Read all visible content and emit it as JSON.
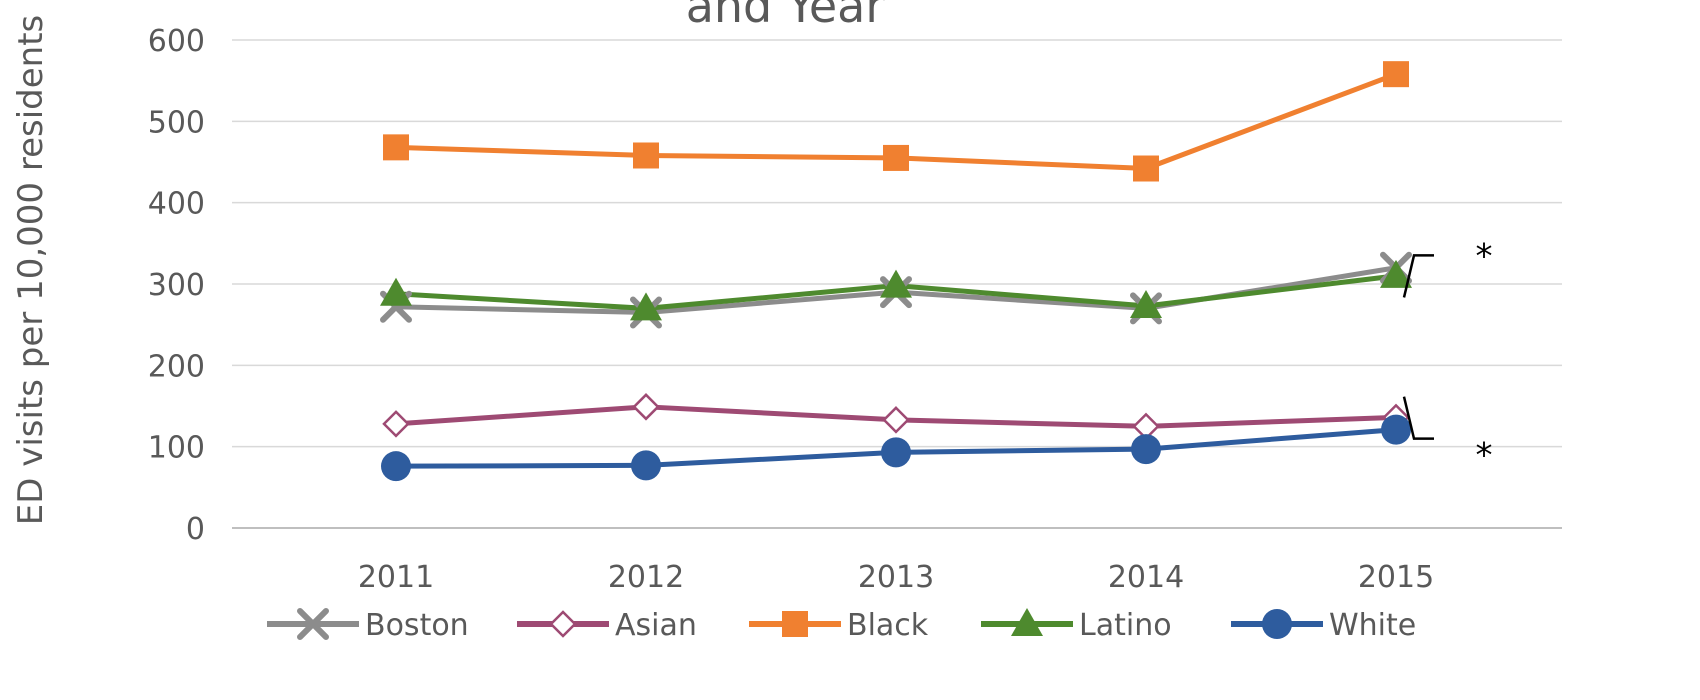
{
  "chart_data": {
    "type": "line",
    "title": "and Year",
    "ylabel": "ED visits per 10,000 residents",
    "xlabel": "",
    "x": [
      "2011",
      "2012",
      "2013",
      "2014",
      "2015"
    ],
    "ylim": [
      0,
      600
    ],
    "yticks": [
      "0",
      "100",
      "200",
      "300",
      "400",
      "500",
      "600"
    ],
    "grid": "horizontal",
    "legend_position": "bottom",
    "series": [
      {
        "name": "Boston",
        "values": [
          272,
          265,
          290,
          270,
          320
        ],
        "color": "#8c8c8c",
        "marker": "x"
      },
      {
        "name": "Asian",
        "values": [
          128,
          149,
          133,
          125,
          136
        ],
        "color": "#9e4a73",
        "marker": "open-diamond"
      },
      {
        "name": "Black",
        "values": [
          468,
          458,
          455,
          442,
          558
        ],
        "color": "#f08030",
        "marker": "square"
      },
      {
        "name": "Latino",
        "values": [
          288,
          270,
          298,
          273,
          310
        ],
        "color": "#4e8a2e",
        "marker": "triangle"
      },
      {
        "name": "White",
        "values": [
          76,
          77,
          93,
          97,
          121
        ],
        "color": "#2e5c9e",
        "marker": "circle"
      }
    ],
    "annotations": [
      {
        "text": "*",
        "x": "2015",
        "y": 345,
        "note": "bracket near Boston/Latino"
      },
      {
        "text": "*",
        "x": "2015",
        "y": 100,
        "note": "bracket near White"
      }
    ]
  }
}
